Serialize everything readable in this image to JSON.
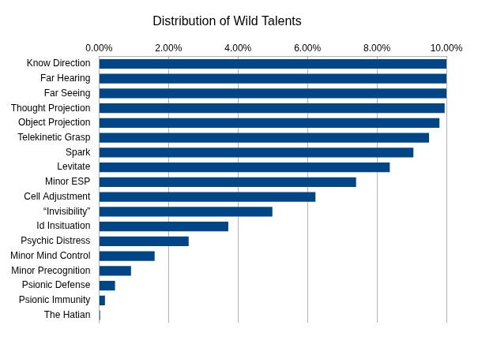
{
  "chart_data": {
    "type": "bar",
    "orientation": "horizontal",
    "title": "Distribution of Wild Talents",
    "categories": [
      "Know Direction",
      "Far Hearing",
      "Far Seeing",
      "Thought Projection",
      "Object Projection",
      "Telekinetic Grasp",
      "Spark",
      "Levitate",
      "Minor ESP",
      "Cell Adjustment",
      "“Invisibility”",
      "Id Insituation",
      "Psychic Distress",
      "Minor Mind Control",
      "Minor Precognition",
      "Psionic Defense",
      "Psionic Immunity",
      "The Hatian"
    ],
    "values": [
      10,
      10,
      10,
      9.95,
      9.8,
      9.5,
      9.05,
      8.37,
      7.4,
      6.23,
      4.99,
      3.72,
      2.58,
      1.6,
      0.92,
      0.46,
      0.17,
      0.03
    ],
    "color": "#004586",
    "xlim": [
      0,
      10
    ],
    "xticks": [
      {
        "value": 0,
        "label": "0.00%"
      },
      {
        "value": 2,
        "label": "2.00%"
      },
      {
        "value": 4,
        "label": "4.00%"
      },
      {
        "value": 6,
        "label": "6.00%"
      },
      {
        "value": 8,
        "label": "8.00%"
      },
      {
        "value": 10,
        "label": "10.00%"
      }
    ],
    "grid": true
  }
}
